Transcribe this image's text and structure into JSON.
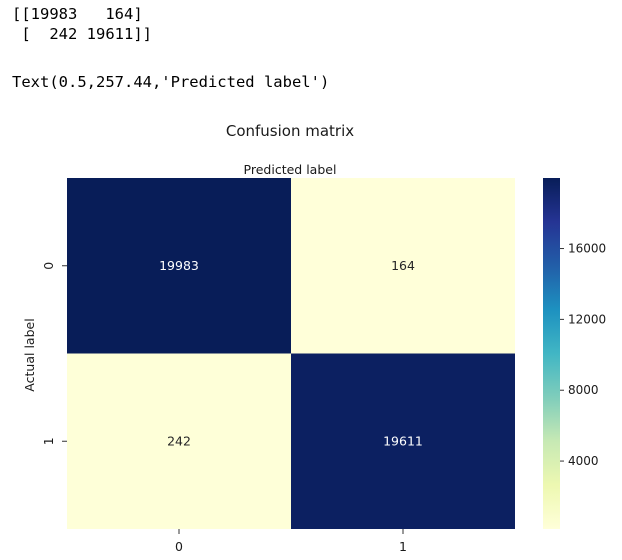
{
  "console": {
    "array_line1": "[[19983   164]",
    "array_line2": " [  242 19611]]",
    "repr_line": "Text(0.5,257.44,'Predicted label')"
  },
  "chart_data": {
    "type": "heatmap",
    "title": "Confusion matrix",
    "xlabel": "Predicted label",
    "ylabel": "Actual label",
    "x_categories": [
      "0",
      "1"
    ],
    "y_categories": [
      "0",
      "1"
    ],
    "values": [
      [
        19983,
        164
      ],
      [
        242,
        19611
      ]
    ],
    "colormap": "YlGnBu",
    "colorbar": {
      "ticks": [
        4000,
        8000,
        12000,
        16000
      ],
      "range": [
        164,
        19983
      ]
    },
    "xlabel_position": "top",
    "grid": false
  }
}
